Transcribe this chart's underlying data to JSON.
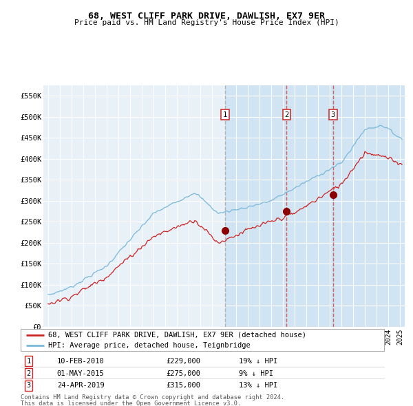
{
  "title": "68, WEST CLIFF PARK DRIVE, DAWLISH, EX7 9ER",
  "subtitle": "Price paid vs. HM Land Registry's House Price Index (HPI)",
  "legend_line1": "68, WEST CLIFF PARK DRIVE, DAWLISH, EX7 9ER (detached house)",
  "legend_line2": "HPI: Average price, detached house, Teignbridge",
  "transactions": [
    {
      "label": "1",
      "date": "10-FEB-2010",
      "price": 229000,
      "hpi_note": "19% ↓ HPI",
      "year": 2010.1
    },
    {
      "label": "2",
      "date": "01-MAY-2015",
      "price": 275000,
      "hpi_note": "9% ↓ HPI",
      "year": 2015.33
    },
    {
      "label": "3",
      "date": "24-APR-2019",
      "price": 315000,
      "hpi_note": "13% ↓ HPI",
      "year": 2019.29
    }
  ],
  "footer_line1": "Contains HM Land Registry data © Crown copyright and database right 2024.",
  "footer_line2": "This data is licensed under the Open Government Licence v3.0.",
  "hpi_color": "#7ab8d9",
  "price_color": "#cc2222",
  "transaction_dot_color": "#8b0000",
  "marker_box_color": "#cc2222",
  "vline1_color": "#aaaaaa",
  "vline_color": "#dd4444",
  "shade_color": "#d0e4f4",
  "background_color": "#e8f0f8",
  "grid_color": "#ffffff",
  "ylim": [
    0,
    575000
  ],
  "ytick_vals": [
    0,
    50000,
    100000,
    150000,
    200000,
    250000,
    300000,
    350000,
    400000,
    450000,
    500000,
    550000
  ],
  "ytick_labels": [
    "£0",
    "£50K",
    "£100K",
    "£150K",
    "£200K",
    "£250K",
    "£300K",
    "£350K",
    "£400K",
    "£450K",
    "£500K",
    "£550K"
  ],
  "xlim_start": 1994.6,
  "xlim_end": 2025.4
}
